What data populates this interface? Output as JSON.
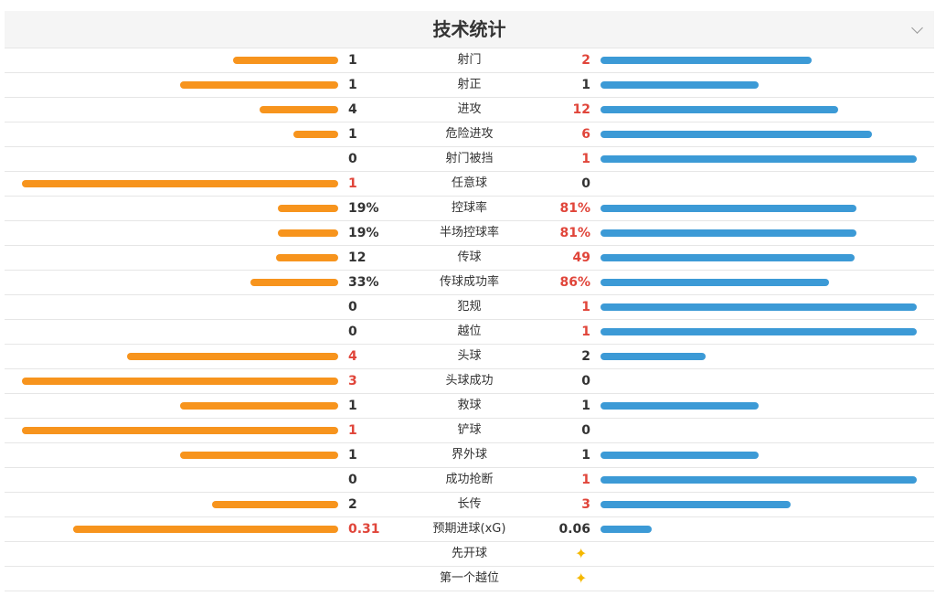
{
  "header": {
    "title": "技术统计"
  },
  "rows": [
    {
      "label": "射门",
      "home": 1,
      "away": 2
    },
    {
      "label": "射正",
      "home": 1,
      "away": 1
    },
    {
      "label": "进攻",
      "home": 4,
      "away": 12
    },
    {
      "label": "危险进攻",
      "home": 1,
      "away": 6
    },
    {
      "label": "射门被挡",
      "home": 0,
      "away": 1
    },
    {
      "label": "任意球",
      "home": 1,
      "away": 0
    },
    {
      "label": "控球率",
      "home": {
        "value": 19,
        "label": "19%"
      },
      "away": {
        "value": 81,
        "label": "81%"
      }
    },
    {
      "label": "半场控球率",
      "home": {
        "value": 19,
        "label": "19%"
      },
      "away": {
        "value": 81,
        "label": "81%"
      }
    },
    {
      "label": "传球",
      "home": 12,
      "away": 49
    },
    {
      "label": "传球成功率",
      "home": {
        "value": 33,
        "label": "33%"
      },
      "away": {
        "value": 86,
        "label": "86%"
      }
    },
    {
      "label": "犯规",
      "home": 0,
      "away": 1
    },
    {
      "label": "越位",
      "home": 0,
      "away": 1
    },
    {
      "label": "头球",
      "home": 4,
      "away": 2
    },
    {
      "label": "头球成功",
      "home": 3,
      "away": 0
    },
    {
      "label": "救球",
      "home": 1,
      "away": 1
    },
    {
      "label": "铲球",
      "home": 1,
      "away": 0
    },
    {
      "label": "界外球",
      "home": 1,
      "away": 1
    },
    {
      "label": "成功抢断",
      "home": 0,
      "away": 1
    },
    {
      "label": "长传",
      "home": 2,
      "away": 3
    },
    {
      "label": "预期进球(xG)",
      "home": 0.31,
      "away": 0.06
    },
    {
      "label": "先开球"
    },
    {
      "label": "第一个越位"
    }
  ]
}
